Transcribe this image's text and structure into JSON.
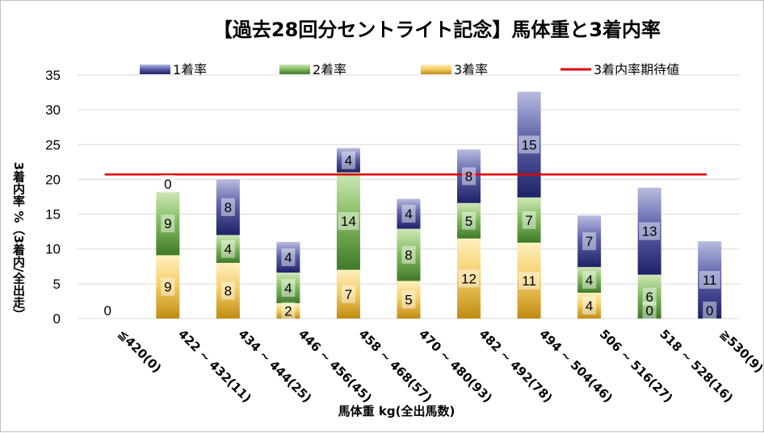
{
  "chart_data": {
    "type": "bar",
    "stacked": true,
    "title": "【過去28回分セントライト記念】馬体重と3着内率",
    "xlabel": "馬体重 kg(全出馬数)",
    "ylabel": "3着内率 %（3着内/全出走）",
    "ylim": [
      0,
      35
    ],
    "yticks": [
      0,
      5,
      10,
      15,
      20,
      25,
      30,
      35
    ],
    "grid": true,
    "legend_position": "top",
    "categories": [
      "≦420(0)",
      "422 ~ 432(11)",
      "434 ~ 444(25)",
      "446 ~ 456(45)",
      "458 ~ 468(57)",
      "470 ~ 480(93)",
      "482 ~ 492(78)",
      "494 ~ 504(46)",
      "506 ~ 516(27)",
      "518 ~ 528(16)",
      "≧530(9)"
    ],
    "series": [
      {
        "name": "3着率",
        "color": "#e8b230",
        "values": [
          0,
          9.1,
          8.0,
          2.2,
          7.0,
          5.4,
          11.5,
          10.9,
          3.7,
          0,
          0
        ],
        "labels": [
          "0",
          "9",
          "8",
          "2",
          "7",
          "5",
          "12",
          "11",
          "4",
          "0",
          "0"
        ]
      },
      {
        "name": "2着率",
        "color": "#6aa84f",
        "values": [
          0,
          9.1,
          4.0,
          4.4,
          14.0,
          7.5,
          5.1,
          6.5,
          3.7,
          6.3,
          0
        ],
        "labels": [
          "",
          "9",
          "4",
          "4",
          "14",
          "8",
          "5",
          "7",
          "4",
          "6",
          ""
        ]
      },
      {
        "name": "1着率",
        "color": "#3a3f8f",
        "values": [
          0,
          0,
          8.0,
          4.4,
          3.5,
          4.3,
          7.7,
          15.2,
          7.4,
          12.5,
          11.1
        ],
        "labels": [
          "",
          "0",
          "8",
          "4",
          "4",
          "4",
          "8",
          "15",
          "7",
          "13",
          "11"
        ]
      }
    ],
    "reference_line": {
      "name": "3着内率期待値",
      "value": 20.7,
      "color": "#e00000"
    },
    "legend_order": [
      "1着率",
      "2着率",
      "3着率",
      "3着内率期待値"
    ]
  }
}
